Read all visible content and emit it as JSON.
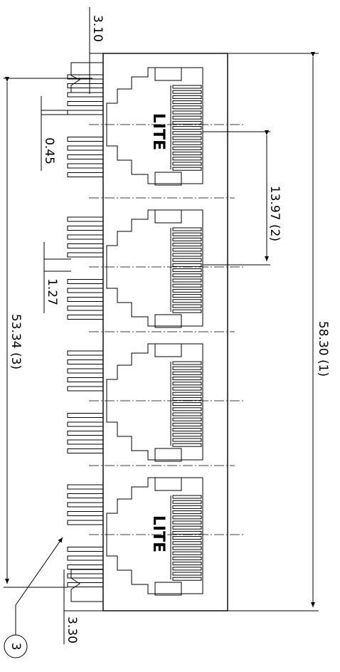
{
  "dimensions": {
    "top_offset": "3.10",
    "pin_width": "0.45",
    "pin_pitch": "1.27",
    "overall_pin_span": "53.34 (3)",
    "port_pitch": "13.97 (2)",
    "overall_length": "58.30 (1)",
    "bottom_offset": "3.30"
  },
  "callout": "3",
  "logos": [
    "LITE",
    "LITE"
  ]
}
